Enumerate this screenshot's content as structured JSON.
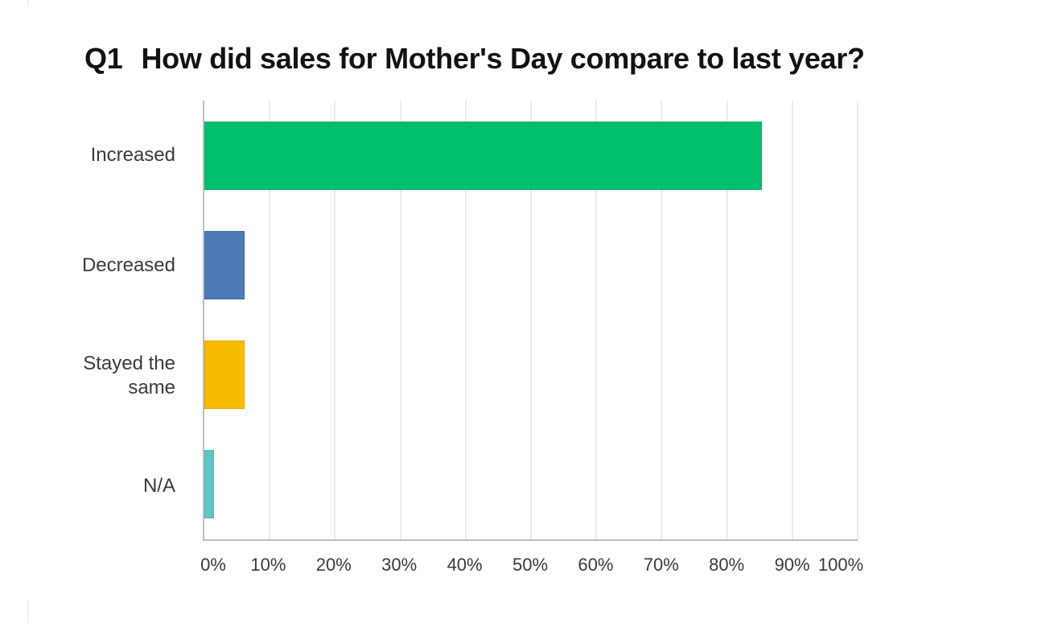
{
  "page": {
    "background": "#ffffff"
  },
  "header": {
    "question_number": "Q1",
    "question_text": "How did sales for Mother's Day compare to last year?"
  },
  "chart_data": {
    "type": "bar",
    "orientation": "horizontal",
    "title": "Q1 How did sales for Mother's Day compare to last year?",
    "categories": [
      "Increased",
      "Decreased",
      "Stayed the same",
      "N/A"
    ],
    "values": [
      85.4,
      6.1,
      6.1,
      1.5
    ],
    "unit": "%",
    "colors": [
      "#00BF6F",
      "#4E7BB8",
      "#F8BB00",
      "#5FC6C6"
    ],
    "border_colors": [
      "#00AA61",
      "#3C67A5",
      "#E5A800",
      "#4FB9BB"
    ],
    "x_ticks": [
      "0%",
      "10%",
      "20%",
      "30%",
      "40%",
      "50%",
      "60%",
      "70%",
      "80%",
      "90%",
      "100%"
    ],
    "xlim": [
      0,
      100
    ],
    "xlabel": "",
    "ylabel": "",
    "grid": "vertical",
    "grid_color": "#eaebec",
    "axis_color": "#bcbec0",
    "legend": "none"
  }
}
